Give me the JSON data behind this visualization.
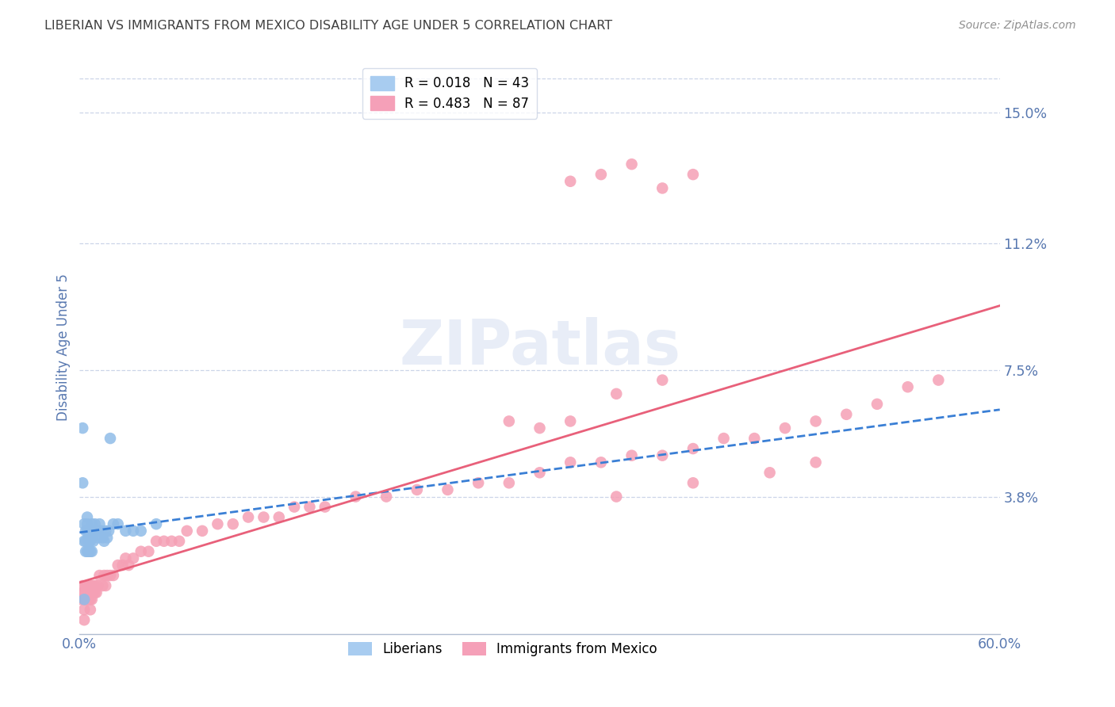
{
  "title": "LIBERIAN VS IMMIGRANTS FROM MEXICO DISABILITY AGE UNDER 5 CORRELATION CHART",
  "source": "Source: ZipAtlas.com",
  "ylabel": "Disability Age Under 5",
  "ytick_labels": [
    "15.0%",
    "11.2%",
    "7.5%",
    "3.8%"
  ],
  "ytick_values": [
    0.15,
    0.112,
    0.075,
    0.038
  ],
  "xlim": [
    0.0,
    0.6
  ],
  "ylim": [
    -0.002,
    0.165
  ],
  "liberian_color": "#90bce8",
  "mexico_color": "#f5a0b5",
  "liberian_line_color": "#3a7fd5",
  "mexico_line_color": "#e8607a",
  "background_color": "#ffffff",
  "grid_color": "#ccd5e8",
  "title_color": "#404040",
  "axis_label_color": "#5878b0",
  "watermark": "ZIPatlas",
  "liberian_x": [
    0.002,
    0.002,
    0.003,
    0.003,
    0.004,
    0.004,
    0.004,
    0.005,
    0.005,
    0.005,
    0.005,
    0.006,
    0.006,
    0.006,
    0.006,
    0.007,
    0.007,
    0.007,
    0.007,
    0.008,
    0.008,
    0.008,
    0.009,
    0.009,
    0.01,
    0.01,
    0.011,
    0.012,
    0.013,
    0.014,
    0.015,
    0.016,
    0.017,
    0.018,
    0.019,
    0.02,
    0.022,
    0.025,
    0.03,
    0.035,
    0.04,
    0.05,
    0.003
  ],
  "liberian_y": [
    0.058,
    0.042,
    0.03,
    0.025,
    0.028,
    0.025,
    0.022,
    0.032,
    0.03,
    0.028,
    0.022,
    0.028,
    0.026,
    0.025,
    0.022,
    0.028,
    0.026,
    0.025,
    0.022,
    0.03,
    0.026,
    0.022,
    0.028,
    0.025,
    0.03,
    0.028,
    0.028,
    0.026,
    0.03,
    0.028,
    0.026,
    0.025,
    0.028,
    0.026,
    0.028,
    0.055,
    0.03,
    0.03,
    0.028,
    0.028,
    0.028,
    0.03,
    0.008
  ],
  "mexico_x": [
    0.001,
    0.002,
    0.002,
    0.003,
    0.003,
    0.003,
    0.004,
    0.004,
    0.005,
    0.005,
    0.005,
    0.006,
    0.006,
    0.007,
    0.007,
    0.007,
    0.008,
    0.008,
    0.009,
    0.009,
    0.01,
    0.01,
    0.011,
    0.012,
    0.013,
    0.015,
    0.016,
    0.017,
    0.018,
    0.02,
    0.022,
    0.025,
    0.028,
    0.03,
    0.032,
    0.035,
    0.04,
    0.045,
    0.05,
    0.055,
    0.06,
    0.065,
    0.07,
    0.08,
    0.09,
    0.1,
    0.11,
    0.12,
    0.13,
    0.14,
    0.15,
    0.16,
    0.18,
    0.2,
    0.22,
    0.24,
    0.26,
    0.28,
    0.3,
    0.32,
    0.34,
    0.36,
    0.38,
    0.4,
    0.42,
    0.44,
    0.46,
    0.48,
    0.5,
    0.52,
    0.35,
    0.4,
    0.45,
    0.48,
    0.54,
    0.56,
    0.3,
    0.32,
    0.35,
    0.38,
    0.32,
    0.34,
    0.36,
    0.38,
    0.4,
    0.28,
    0.003
  ],
  "mexico_y": [
    0.008,
    0.01,
    0.012,
    0.005,
    0.008,
    0.01,
    0.008,
    0.012,
    0.008,
    0.01,
    0.012,
    0.008,
    0.01,
    0.005,
    0.008,
    0.01,
    0.012,
    0.008,
    0.01,
    0.012,
    0.01,
    0.012,
    0.01,
    0.012,
    0.015,
    0.012,
    0.015,
    0.012,
    0.015,
    0.015,
    0.015,
    0.018,
    0.018,
    0.02,
    0.018,
    0.02,
    0.022,
    0.022,
    0.025,
    0.025,
    0.025,
    0.025,
    0.028,
    0.028,
    0.03,
    0.03,
    0.032,
    0.032,
    0.032,
    0.035,
    0.035,
    0.035,
    0.038,
    0.038,
    0.04,
    0.04,
    0.042,
    0.042,
    0.045,
    0.048,
    0.048,
    0.05,
    0.05,
    0.052,
    0.055,
    0.055,
    0.058,
    0.06,
    0.062,
    0.065,
    0.038,
    0.042,
    0.045,
    0.048,
    0.07,
    0.072,
    0.058,
    0.06,
    0.068,
    0.072,
    0.13,
    0.132,
    0.135,
    0.128,
    0.132,
    0.06,
    0.002
  ]
}
